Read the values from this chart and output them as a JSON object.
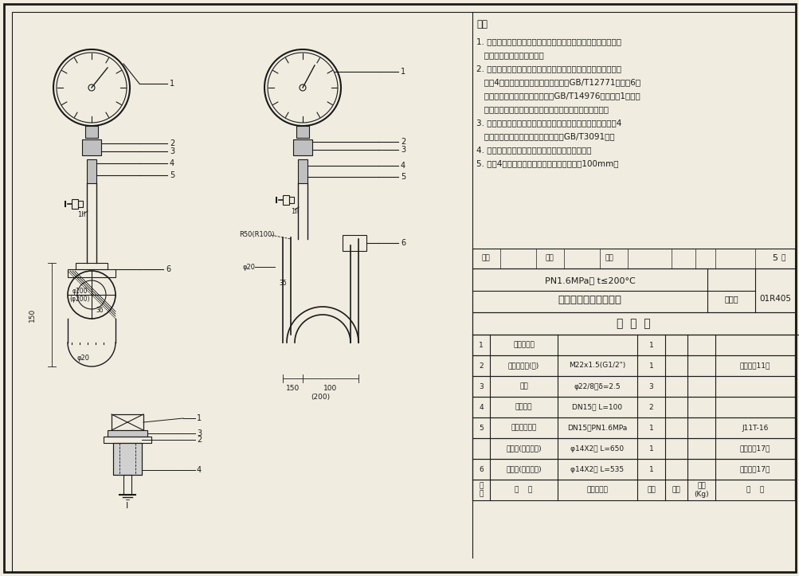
{
  "bg_color": "#f5f5f0",
  "line_color": "#1a1a1a",
  "title": "带冷凝管压力表安装图",
  "subtitle": "PN1.6MPa， t≤200°C",
  "drawing_no": "01R405",
  "page": "5",
  "notes": [
    "注：",
    "1. 图中表示根据为焊接安装方式，亦可采用法兰接管安装方式，",
    "    设计中根据实际情况选择。",
    "2. 当用于腑蚀介质场合时，除帪片外，其余部件材质为耐酸钙，",
    "    序号4选用流体输送用不锈钙焊接钙管GB/T12771，序号6选",
    "    用流体输送用不锈钙无缝钙管（GB/T14976），序号1选用膜",
    "    片压力表或耐酸压力表， 帪片的选择原则见总说明表二。",
    "3. 当用于无腑蚀场合时，除帪片外，其余材质可为碳钙，序号4",
    "    选用低压流体输送用镇锌焊接钙管（GB/T3091）。",
    "4. 括号内数据用于低压流体输送用镇锌焊接钙管。",
    "5. 序号4可根据现场情况确定，其最小长度为100mm。"
  ],
  "table_rows": [
    [
      "6",
      "冷凝弯(侧面安装)",
      "φ14X2， L=535",
      "1",
      "",
      "",
      "制造图见17页"
    ],
    [
      "",
      "冷凝弯(顶部安装)",
      "φ14X2， L=650",
      "1",
      "",
      "",
      "制造图见17页"
    ],
    [
      "5",
      "内螺纹截止阀",
      "DN15，PN1.6MPa",
      "1",
      "",
      "",
      "J11T-16"
    ],
    [
      "4",
      "焊接钙管",
      "DN15， L=100",
      "2",
      "",
      "",
      ""
    ],
    [
      "3",
      "帪片",
      "φ22/8，δ=2.5",
      "3",
      "",
      "",
      ""
    ],
    [
      "2",
      "压力表接头(一)",
      "M22x1.5(G1/2\")",
      "1",
      "",
      "",
      "制造图见11页"
    ],
    [
      "1",
      "弹簧压力表",
      "",
      "1",
      "",
      "",
      ""
    ]
  ],
  "table_header": [
    "序号",
    "名称",
    "规格、型号",
    "数量",
    "单重",
    "总重\n(Kg)",
    "备注"
  ],
  "mingxi_title": "明  细  表",
  "shenhe": "审核",
  "jiaodui": "校对",
  "sheji": "设计",
  "ye": "页"
}
